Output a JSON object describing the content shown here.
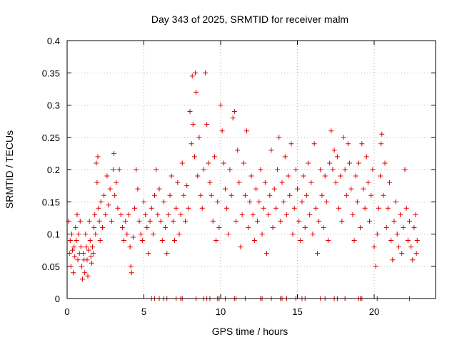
{
  "chart_data": {
    "type": "scatter",
    "title": "Day 343 of 2025, SRMTID for receiver malm",
    "xlabel": "GPS time / hours",
    "ylabel": "SRMTID / TECUs",
    "xlim": [
      0,
      24
    ],
    "ylim": [
      0,
      0.4
    ],
    "x_ticks": [
      0,
      5,
      10,
      15,
      20
    ],
    "y_ticks": [
      0,
      0.05,
      0.1,
      0.15,
      0.2,
      0.25,
      0.3,
      0.35,
      0.4
    ],
    "x_tick_labels": [
      "0",
      "5",
      "10",
      "15",
      "20"
    ],
    "y_tick_labels": [
      "0",
      "0.05",
      "0.1",
      "0.15",
      "0.2",
      "0.25",
      "0.3",
      "0.35",
      "0.4"
    ],
    "grid": true,
    "marker": "+",
    "series": [
      {
        "name": "SRMTID",
        "color": "#e00000",
        "points": [
          [
            0.1,
            0.12
          ],
          [
            0.15,
            0.07
          ],
          [
            0.2,
            0.09
          ],
          [
            0.25,
            0.05
          ],
          [
            0.3,
            0.1
          ],
          [
            0.35,
            0.075
          ],
          [
            0.4,
            0.04
          ],
          [
            0.45,
            0.08
          ],
          [
            0.5,
            0.065
          ],
          [
            0.55,
            0.11
          ],
          [
            0.6,
            0.09
          ],
          [
            0.65,
            0.13
          ],
          [
            0.7,
            0.06
          ],
          [
            0.75,
            0.1
          ],
          [
            0.8,
            0.07
          ],
          [
            0.85,
            0.12
          ],
          [
            0.9,
            0.08
          ],
          [
            0.95,
            0.05
          ],
          [
            1.0,
            0.03
          ],
          [
            1.05,
            0.07
          ],
          [
            1.1,
            0.06
          ],
          [
            1.15,
            0.04
          ],
          [
            1.2,
            0.1
          ],
          [
            1.25,
            0.08
          ],
          [
            1.3,
            0.06
          ],
          [
            1.35,
            0.035
          ],
          [
            1.4,
            0.075
          ],
          [
            1.45,
            0.12
          ],
          [
            1.5,
            0.09
          ],
          [
            1.55,
            0.065
          ],
          [
            1.6,
            0.055
          ],
          [
            1.65,
            0.08
          ],
          [
            1.7,
            0.07
          ],
          [
            1.75,
            0.11
          ],
          [
            1.8,
            0.13
          ],
          [
            1.85,
            0.1
          ],
          [
            1.9,
            0.21
          ],
          [
            1.95,
            0.18
          ],
          [
            2.0,
            0.22
          ],
          [
            2.05,
            0.14
          ],
          [
            2.1,
            0.12
          ],
          [
            2.15,
            0.09
          ],
          [
            2.2,
            0.15
          ],
          [
            2.3,
            0.11
          ],
          [
            2.4,
            0.16
          ],
          [
            2.5,
            0.13
          ],
          [
            2.6,
            0.19
          ],
          [
            2.7,
            0.145
          ],
          [
            2.8,
            0.17
          ],
          [
            2.9,
            0.12
          ],
          [
            3.0,
            0.2
          ],
          [
            3.05,
            0.225
          ],
          [
            3.1,
            0.16
          ],
          [
            3.2,
            0.18
          ],
          [
            3.3,
            0.14
          ],
          [
            3.4,
            0.2
          ],
          [
            3.5,
            0.13
          ],
          [
            3.6,
            0.11
          ],
          [
            3.7,
            0.09
          ],
          [
            3.8,
            0.12
          ],
          [
            3.9,
            0.1
          ],
          [
            4.0,
            0.13
          ],
          [
            4.1,
            0.08
          ],
          [
            4.15,
            0.05
          ],
          [
            4.2,
            0.04
          ],
          [
            4.3,
            0.095
          ],
          [
            4.4,
            0.14
          ],
          [
            4.5,
            0.2
          ],
          [
            4.6,
            0.17
          ],
          [
            4.7,
            0.12
          ],
          [
            4.8,
            0.1
          ],
          [
            4.9,
            0.09
          ],
          [
            5.0,
            0.15
          ],
          [
            5.1,
            0.13
          ],
          [
            5.2,
            0.11
          ],
          [
            5.3,
            0.07
          ],
          [
            5.4,
            0.12
          ],
          [
            5.5,
            0.14
          ],
          [
            5.6,
            0.1
          ],
          [
            5.7,
            0.16
          ],
          [
            5.8,
            0.2
          ],
          [
            5.9,
            0.13
          ],
          [
            6.0,
            0.17
          ],
          [
            6.1,
            0.12
          ],
          [
            6.2,
            0.09
          ],
          [
            6.3,
            0.15
          ],
          [
            6.4,
            0.11
          ],
          [
            6.5,
            0.07
          ],
          [
            6.6,
            0.13
          ],
          [
            6.7,
            0.16
          ],
          [
            6.8,
            0.19
          ],
          [
            6.9,
            0.12
          ],
          [
            7.0,
            0.09
          ],
          [
            7.1,
            0.14
          ],
          [
            7.2,
            0.18
          ],
          [
            7.3,
            0.1
          ],
          [
            7.4,
            0.13
          ],
          [
            7.5,
            0.21
          ],
          [
            7.6,
            0.16
          ],
          [
            7.7,
            0.12
          ],
          [
            7.8,
            0.175
          ],
          [
            7.9,
            0.14
          ],
          [
            8.0,
            0.29
          ],
          [
            8.1,
            0.24
          ],
          [
            8.15,
            0.345
          ],
          [
            8.2,
            0.27
          ],
          [
            8.3,
            0.22
          ],
          [
            8.35,
            0.35
          ],
          [
            8.4,
            0.32
          ],
          [
            8.5,
            0.19
          ],
          [
            8.6,
            0.25
          ],
          [
            8.7,
            0.16
          ],
          [
            8.8,
            0.14
          ],
          [
            8.9,
            0.2
          ],
          [
            9.0,
            0.35
          ],
          [
            9.1,
            0.27
          ],
          [
            9.2,
            0.21
          ],
          [
            9.3,
            0.18
          ],
          [
            9.4,
            0.16
          ],
          [
            9.5,
            0.12
          ],
          [
            9.6,
            0.22
          ],
          [
            9.7,
            0.09
          ],
          [
            9.8,
            0.15
          ],
          [
            9.9,
            0.11
          ],
          [
            10.0,
            0.3
          ],
          [
            10.1,
            0.26
          ],
          [
            10.2,
            0.21
          ],
          [
            10.3,
            0.17
          ],
          [
            10.4,
            0.14
          ],
          [
            10.5,
            0.1
          ],
          [
            10.6,
            0.2
          ],
          [
            10.7,
            0.16
          ],
          [
            10.8,
            0.28
          ],
          [
            10.9,
            0.29
          ],
          [
            11.0,
            0.12
          ],
          [
            11.1,
            0.23
          ],
          [
            11.2,
            0.18
          ],
          [
            11.3,
            0.08
          ],
          [
            11.4,
            0.13
          ],
          [
            11.5,
            0.21
          ],
          [
            11.6,
            0.16
          ],
          [
            11.7,
            0.26
          ],
          [
            11.8,
            0.11
          ],
          [
            11.9,
            0.15
          ],
          [
            12.0,
            0.19
          ],
          [
            12.1,
            0.13
          ],
          [
            12.2,
            0.09
          ],
          [
            12.3,
            0.17
          ],
          [
            12.4,
            0.12
          ],
          [
            12.5,
            0.15
          ],
          [
            12.6,
            0.2
          ],
          [
            12.7,
            0.1
          ],
          [
            12.8,
            0.14
          ],
          [
            12.9,
            0.18
          ],
          [
            13.0,
            0.07
          ],
          [
            13.1,
            0.13
          ],
          [
            13.2,
            0.16
          ],
          [
            13.3,
            0.23
          ],
          [
            13.4,
            0.11
          ],
          [
            13.5,
            0.17
          ],
          [
            13.6,
            0.14
          ],
          [
            13.7,
            0.2
          ],
          [
            13.8,
            0.25
          ],
          [
            13.9,
            0.12
          ],
          [
            14.0,
            0.18
          ],
          [
            14.1,
            0.15
          ],
          [
            14.2,
            0.22
          ],
          [
            14.3,
            0.13
          ],
          [
            14.4,
            0.19
          ],
          [
            14.5,
            0.16
          ],
          [
            14.6,
            0.24
          ],
          [
            14.7,
            0.1
          ],
          [
            14.8,
            0.14
          ],
          [
            14.9,
            0.2
          ],
          [
            15.0,
            0.17
          ],
          [
            15.1,
            0.12
          ],
          [
            15.2,
            0.09
          ],
          [
            15.3,
            0.15
          ],
          [
            15.4,
            0.19
          ],
          [
            15.5,
            0.11
          ],
          [
            15.6,
            0.16
          ],
          [
            15.7,
            0.21
          ],
          [
            15.8,
            0.13
          ],
          [
            15.9,
            0.18
          ],
          [
            16.0,
            0.1
          ],
          [
            16.1,
            0.24
          ],
          [
            16.2,
            0.14
          ],
          [
            16.3,
            0.07
          ],
          [
            16.4,
            0.12
          ],
          [
            16.5,
            0.2
          ],
          [
            16.6,
            0.16
          ],
          [
            16.7,
            0.11
          ],
          [
            16.8,
            0.19
          ],
          [
            16.9,
            0.15
          ],
          [
            17.0,
            0.09
          ],
          [
            17.1,
            0.21
          ],
          [
            17.2,
            0.26
          ],
          [
            17.3,
            0.2
          ],
          [
            17.4,
            0.23
          ],
          [
            17.5,
            0.18
          ],
          [
            17.6,
            0.22
          ],
          [
            17.7,
            0.14
          ],
          [
            17.8,
            0.19
          ],
          [
            17.9,
            0.12
          ],
          [
            18.0,
            0.25
          ],
          [
            18.1,
            0.2
          ],
          [
            18.2,
            0.16
          ],
          [
            18.3,
            0.24
          ],
          [
            18.4,
            0.21
          ],
          [
            18.5,
            0.17
          ],
          [
            18.6,
            0.13
          ],
          [
            18.7,
            0.09
          ],
          [
            18.8,
            0.19
          ],
          [
            18.9,
            0.15
          ],
          [
            19.0,
            0.21
          ],
          [
            19.1,
            0.11
          ],
          [
            19.2,
            0.24
          ],
          [
            19.3,
            0.17
          ],
          [
            19.4,
            0.14
          ],
          [
            19.5,
            0.22
          ],
          [
            19.6,
            0.18
          ],
          [
            19.7,
            0.12
          ],
          [
            19.8,
            0.16
          ],
          [
            19.9,
            0.2
          ],
          [
            20.0,
            0.08
          ],
          [
            20.1,
            0.05
          ],
          [
            20.2,
            0.1
          ],
          [
            20.3,
            0.14
          ],
          [
            20.4,
            0.19
          ],
          [
            20.45,
            0.24
          ],
          [
            20.5,
            0.255
          ],
          [
            20.6,
            0.16
          ],
          [
            20.7,
            0.21
          ],
          [
            20.8,
            0.11
          ],
          [
            20.9,
            0.14
          ],
          [
            21.0,
            0.18
          ],
          [
            21.1,
            0.09
          ],
          [
            21.2,
            0.06
          ],
          [
            21.3,
            0.12
          ],
          [
            21.4,
            0.15
          ],
          [
            21.5,
            0.1
          ],
          [
            21.6,
            0.08
          ],
          [
            21.7,
            0.13
          ],
          [
            21.8,
            0.07
          ],
          [
            21.9,
            0.11
          ],
          [
            22.0,
            0.2
          ],
          [
            22.1,
            0.14
          ],
          [
            22.2,
            0.09
          ],
          [
            22.3,
            0.12
          ],
          [
            22.4,
            0.08
          ],
          [
            22.5,
            0.06
          ],
          [
            22.6,
            0.11
          ],
          [
            22.7,
            0.13
          ],
          [
            22.75,
            0.07
          ],
          [
            22.8,
            0.09
          ]
        ],
        "zero_points": [
          5.5,
          5.7,
          6.0,
          6.3,
          6.5,
          7.1,
          7.4,
          7.5,
          8.4,
          8.9,
          9.1,
          9.3,
          9.8,
          9.9,
          10.3,
          10.9,
          11.0,
          11.6,
          12.6,
          12.7,
          13.3,
          13.9,
          14.0,
          14.3,
          14.9,
          15.3,
          15.5,
          16.5,
          16.8,
          17.4,
          17.6,
          18.1,
          19.0,
          19.1,
          19.2,
          20.2,
          22.3
        ]
      }
    ]
  }
}
